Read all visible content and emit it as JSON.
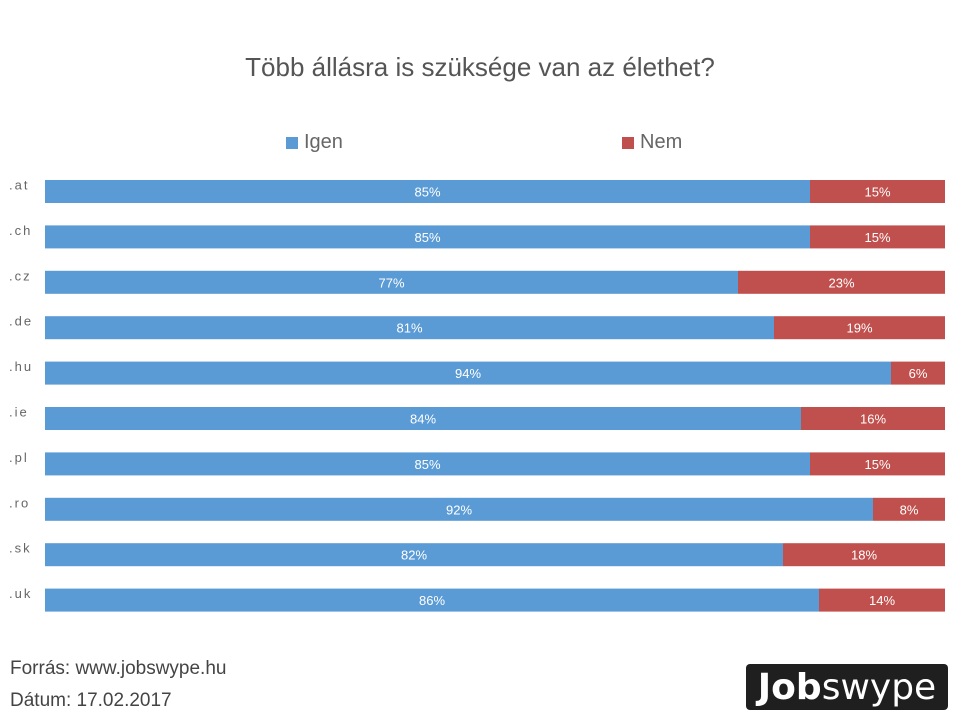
{
  "chart_data": {
    "type": "bar",
    "orientation": "horizontal",
    "stacked": true,
    "title": "Több állásra is szüksége van az élethet?",
    "categories": [
      ".at",
      ".ch",
      ".cz",
      ".de",
      ".hu",
      ".ie",
      ".pl",
      ".ro",
      ".sk",
      ".uk"
    ],
    "series": [
      {
        "name": "Igen",
        "color": "#5b9bd5",
        "values": [
          85,
          85,
          77,
          81,
          94,
          84,
          85,
          92,
          82,
          86
        ],
        "labels": [
          "85%",
          "85%",
          "77%",
          "81%",
          "94%",
          "84%",
          "85%",
          "92%",
          "82%",
          "86%"
        ]
      },
      {
        "name": "Nem",
        "color": "#c0504d",
        "values": [
          15,
          15,
          23,
          19,
          6,
          16,
          15,
          8,
          18,
          14
        ],
        "labels": [
          "15%",
          "15%",
          "23%",
          "19%",
          "6%",
          "16%",
          "15%",
          "8%",
          "18%",
          "14%"
        ]
      }
    ],
    "xlim": [
      0,
      100
    ],
    "legend_position": "top",
    "grid": false
  },
  "footer": {
    "source": "Forrás: www.jobswype.hu",
    "date": "Dátum: 17.02.2017"
  },
  "logo": {
    "part1": "Job",
    "part2": "swype"
  }
}
